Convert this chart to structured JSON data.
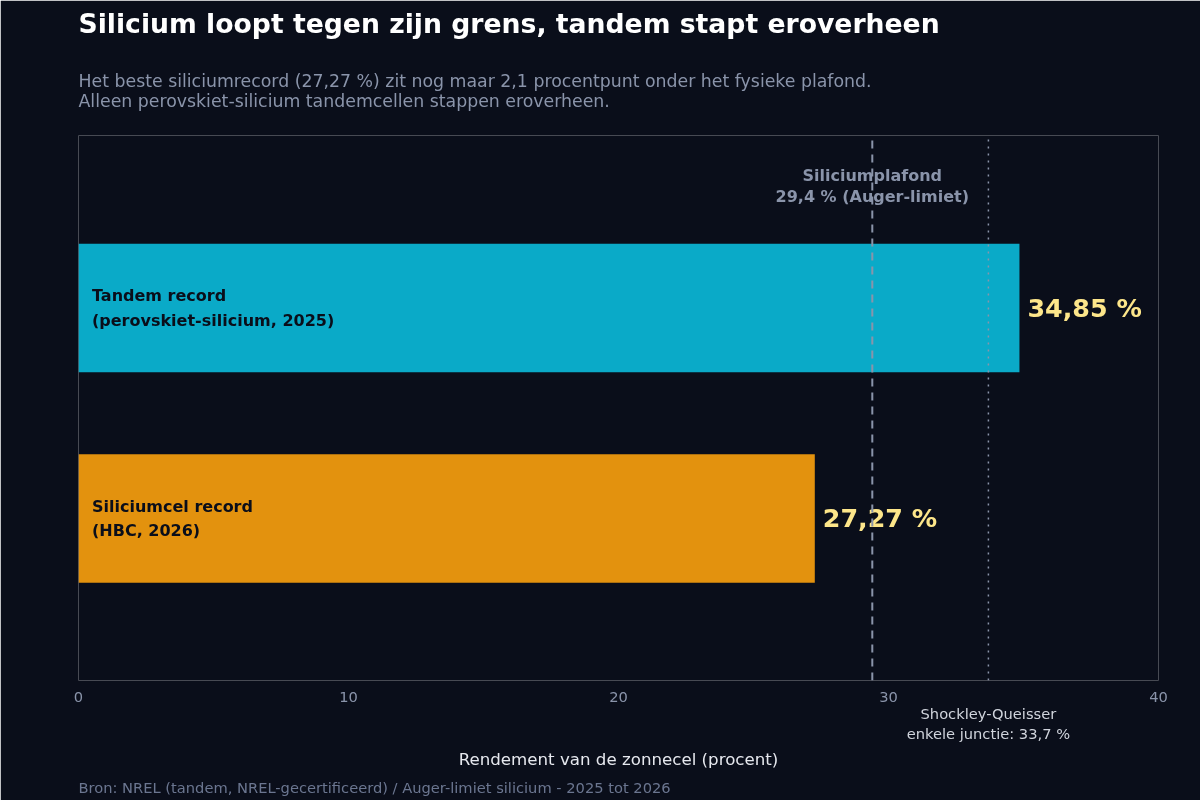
{
  "chart_data": {
    "type": "bar",
    "orientation": "horizontal",
    "title": "Silicium loopt tegen zijn grens, tandem stapt eroverheen",
    "subtitle": "Het beste siliciumrecord (27,27 %) zit nog maar 2,1 procentpunt onder het fysieke plafond.\nAlleen perovskiet-silicium tandemcellen stappen eroverheen.",
    "xlabel": "Rendement van de zonnecel (procent)",
    "categories": [
      "Tandem record\n(perovskiet-silicium, 2025)",
      "Siliciumcel record\n(HBC, 2026)"
    ],
    "values": [
      34.85,
      27.27
    ],
    "colors": [
      "#0aaac8",
      "#e3920e"
    ],
    "value_labels": [
      "34,85 %",
      "27,27 %"
    ],
    "xlim": [
      0,
      40
    ],
    "xticks": [
      0,
      10,
      20,
      30,
      40
    ],
    "grid": false,
    "ref_lines": [
      {
        "axis": "x",
        "value": 29.4,
        "label": "Siliciumplafond\n29,4 % (Auger-limiet)",
        "line_style": "dashed",
        "color": "#8a94aa"
      },
      {
        "axis": "x",
        "value": 33.7,
        "label": "Shockley-Queisser\nenkele junctie: 33,7 %",
        "line_style": "dotted",
        "color": "#8a94aa"
      }
    ],
    "annotations": [
      "Bron: NREL (tandem, NREL-gecertificeerd) / Auger-limiet silicium - 2025 tot 2026"
    ]
  }
}
